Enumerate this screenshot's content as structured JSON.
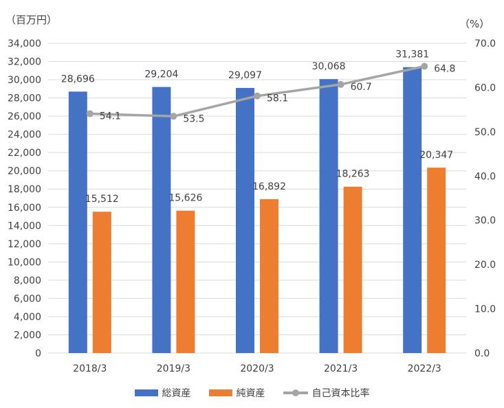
{
  "chart_data": {
    "type": "bar",
    "unit_left": "（百万円）",
    "unit_right": "（%）",
    "categories": [
      "2018/3",
      "2019/3",
      "2020/3",
      "2021/3",
      "2022/3"
    ],
    "series": [
      {
        "name": "総資産",
        "type": "bar",
        "axis": "left",
        "color": "#4472C4",
        "values": [
          28696,
          29204,
          29097,
          30068,
          31381
        ],
        "labels": [
          "28,696",
          "29,204",
          "29,097",
          "30,068",
          "31,381"
        ]
      },
      {
        "name": "純資産",
        "type": "bar",
        "axis": "left",
        "color": "#ED7D31",
        "values": [
          15512,
          15626,
          16892,
          18263,
          20347
        ],
        "labels": [
          "15,512",
          "15,626",
          "16,892",
          "18,263",
          "20,347"
        ]
      },
      {
        "name": "自己資本比率",
        "type": "line",
        "axis": "right",
        "color": "#A5A5A5",
        "values": [
          54.1,
          53.5,
          58.1,
          60.7,
          64.8
        ],
        "labels": [
          "54.1",
          "53.5",
          "58.1",
          "60.7",
          "64.8"
        ]
      }
    ],
    "y_left": {
      "min": 0,
      "max": 34000,
      "step": 2000,
      "ticks": [
        "0",
        "2,000",
        "4,000",
        "6,000",
        "8,000",
        "10,000",
        "12,000",
        "14,000",
        "16,000",
        "18,000",
        "20,000",
        "22,000",
        "24,000",
        "26,000",
        "28,000",
        "30,000",
        "32,000",
        "34,000"
      ]
    },
    "y_right": {
      "min": 0,
      "max": 70,
      "step": 10,
      "ticks": [
        "0.0",
        "10.0",
        "20.0",
        "30.0",
        "40.0",
        "50.0",
        "60.0",
        "70.0"
      ]
    },
    "grid": true,
    "legend_position": "bottom"
  }
}
